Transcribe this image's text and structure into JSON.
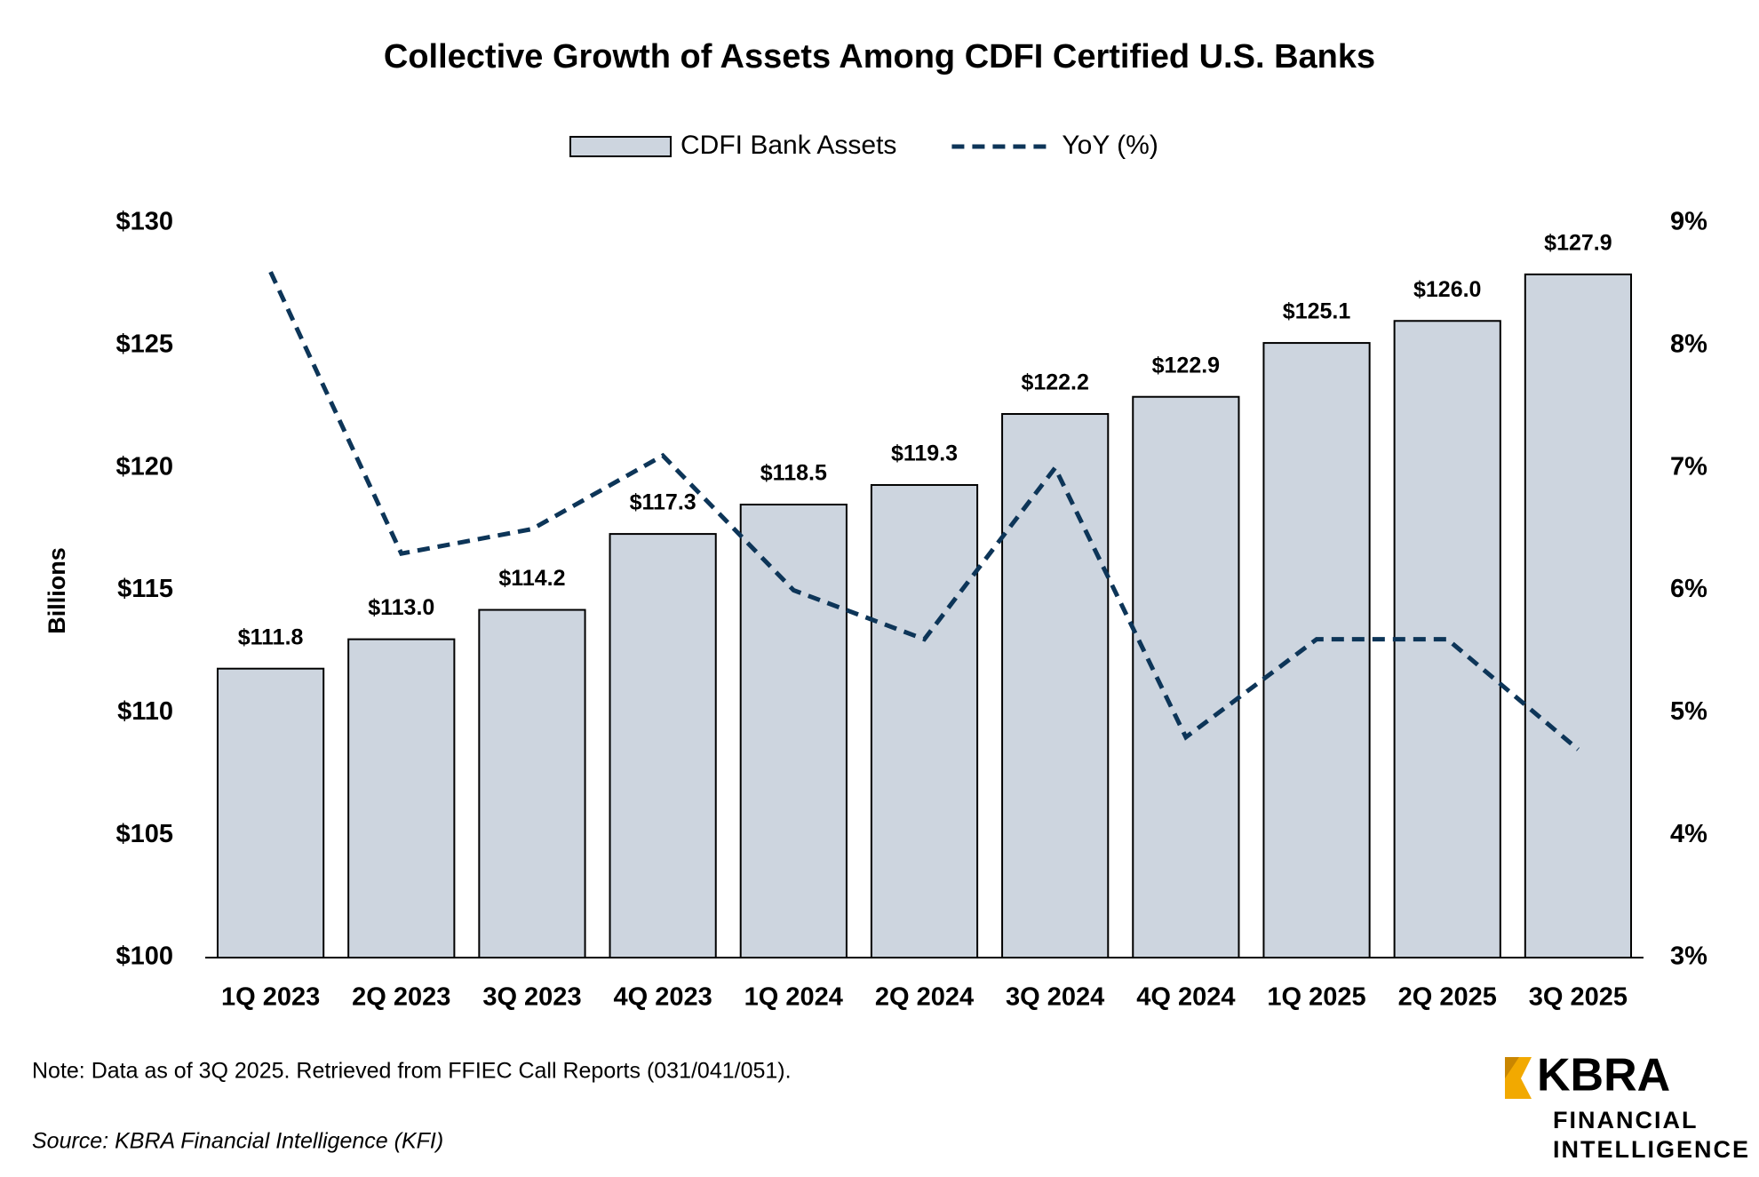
{
  "chart_data": {
    "type": "bar",
    "title": "Collective Growth of Assets Among CDFI Certified U.S. Banks",
    "y_label": "Billions",
    "categories": [
      "1Q 2023",
      "2Q 2023",
      "3Q 2023",
      "4Q 2023",
      "1Q 2024",
      "2Q 2024",
      "3Q 2024",
      "4Q 2024",
      "1Q 2025",
      "2Q 2025",
      "3Q 2025"
    ],
    "series": [
      {
        "name": "CDFI Bank Assets",
        "type": "bar",
        "color": "#cdd5df",
        "values": [
          111.8,
          113.0,
          114.2,
          117.3,
          118.5,
          119.3,
          122.2,
          122.9,
          125.1,
          126.0,
          127.9
        ],
        "value_labels": [
          "$111.8",
          "$113.0",
          "$114.2",
          "$117.3",
          "$118.5",
          "$119.3",
          "$122.2",
          "$122.9",
          "$125.1",
          "$126.0",
          "$127.9"
        ]
      },
      {
        "name": "YoY (%)",
        "type": "line",
        "axis": "y2",
        "color": "#0d3558",
        "values": [
          8.6,
          6.3,
          6.5,
          7.1,
          6.0,
          5.6,
          7.0,
          4.8,
          5.6,
          5.6,
          4.7
        ]
      }
    ],
    "ylim": [
      100,
      130
    ],
    "yticks": [
      {
        "value": 100,
        "label": "$100"
      },
      {
        "value": 105,
        "label": "$105"
      },
      {
        "value": 110,
        "label": "$110"
      },
      {
        "value": 115,
        "label": "$115"
      },
      {
        "value": 120,
        "label": "$120"
      },
      {
        "value": 125,
        "label": "$125"
      },
      {
        "value": 130,
        "label": "$130"
      }
    ],
    "y2lim": [
      3,
      9
    ],
    "y2ticks": [
      {
        "value": 3,
        "label": "3%"
      },
      {
        "value": 4,
        "label": "4%"
      },
      {
        "value": 5,
        "label": "5%"
      },
      {
        "value": 6,
        "label": "6%"
      },
      {
        "value": 7,
        "label": "7%"
      },
      {
        "value": 8,
        "label": "8%"
      },
      {
        "value": 9,
        "label": "9%"
      }
    ],
    "legend": "top",
    "note": "Note: Data as of 3Q 2025. Retrieved from FFIEC Call Reports (031/041/051).",
    "source": "Source: KBRA Financial Intelligence (KFI)"
  },
  "logo": {
    "name": "KBRA",
    "line1": "FINANCIAL",
    "line2": "INTELLIGENCE"
  }
}
